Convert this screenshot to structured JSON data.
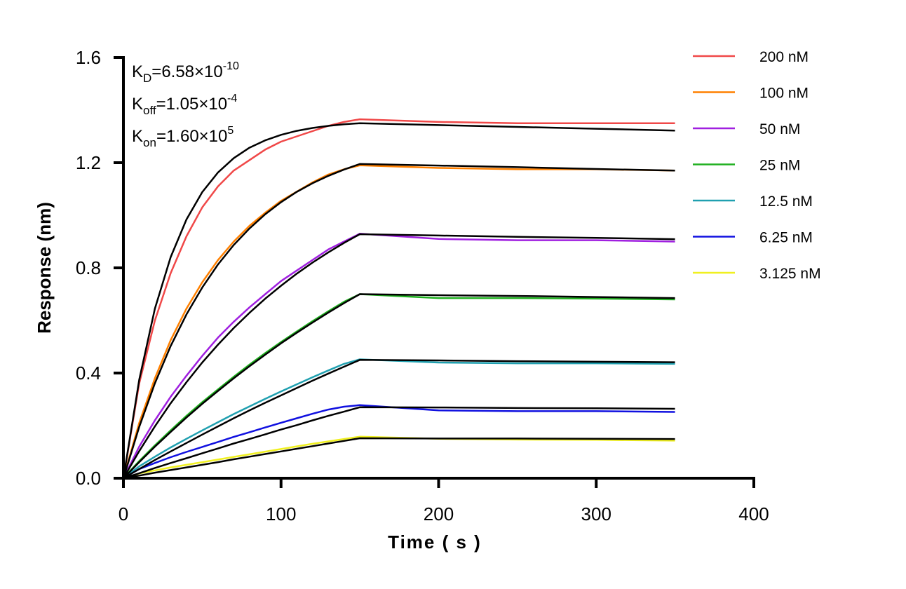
{
  "chart_data": {
    "type": "line",
    "title": "",
    "xlabel": "Time ( s )",
    "ylabel": "Response (nm)",
    "xlim": [
      0,
      400
    ],
    "ylim": [
      0,
      1.6
    ],
    "xticks": [
      "0",
      "100",
      "200",
      "300",
      "400"
    ],
    "yticks": [
      "0.0",
      "0.4",
      "0.8",
      "1.2",
      "1.6"
    ],
    "grid": false,
    "legend_position": "right",
    "fit_color": "#000000",
    "annotations": [
      {
        "symbol": "K",
        "sub": "D",
        "text": "=6.58×10",
        "sup": "-10"
      },
      {
        "symbol": "K",
        "sub": "off",
        "text": "=1.05×10",
        "sup": "-4"
      },
      {
        "symbol": "K",
        "sub": "on",
        "text": "=1.60×10",
        "sup": "5"
      }
    ],
    "x": [
      0,
      10,
      20,
      30,
      40,
      50,
      60,
      70,
      80,
      90,
      100,
      110,
      120,
      130,
      140,
      150,
      200,
      250,
      300,
      350
    ],
    "series": [
      {
        "name": "200 nM",
        "color": "#F04848",
        "values": [
          0,
          0.36,
          0.6,
          0.78,
          0.92,
          1.03,
          1.11,
          1.17,
          1.21,
          1.25,
          1.28,
          1.3,
          1.32,
          1.34,
          1.355,
          1.365,
          1.355,
          1.35,
          1.35,
          1.35
        ],
        "fit": [
          0,
          0.374,
          0.645,
          0.841,
          0.984,
          1.088,
          1.163,
          1.217,
          1.257,
          1.285,
          1.306,
          1.321,
          1.332,
          1.34,
          1.346,
          1.35,
          1.343,
          1.336,
          1.329,
          1.322
        ]
      },
      {
        "name": "100 nM",
        "color": "#FF8000",
        "values": [
          0,
          0.21,
          0.38,
          0.525,
          0.645,
          0.745,
          0.83,
          0.9,
          0.96,
          1.01,
          1.055,
          1.09,
          1.125,
          1.155,
          1.175,
          1.19,
          1.18,
          1.175,
          1.175,
          1.17
        ],
        "fit": [
          0,
          0.195,
          0.361,
          0.503,
          0.623,
          0.725,
          0.813,
          0.887,
          0.95,
          1.004,
          1.05,
          1.089,
          1.122,
          1.15,
          1.174,
          1.195,
          1.189,
          1.183,
          1.176,
          1.17
        ]
      },
      {
        "name": "50 nM",
        "color": "#A020E0",
        "values": [
          0,
          0.12,
          0.22,
          0.31,
          0.39,
          0.465,
          0.535,
          0.595,
          0.65,
          0.7,
          0.75,
          0.79,
          0.83,
          0.87,
          0.9,
          0.93,
          0.91,
          0.905,
          0.905,
          0.9
        ],
        "fit": [
          0,
          0.103,
          0.197,
          0.285,
          0.365,
          0.44,
          0.508,
          0.571,
          0.629,
          0.683,
          0.732,
          0.778,
          0.82,
          0.859,
          0.895,
          0.928,
          0.923,
          0.918,
          0.914,
          0.909
        ]
      },
      {
        "name": "25 nM",
        "color": "#20B020",
        "values": [
          0,
          0.065,
          0.125,
          0.182,
          0.237,
          0.289,
          0.338,
          0.386,
          0.432,
          0.476,
          0.518,
          0.558,
          0.597,
          0.635,
          0.671,
          0.7,
          0.685,
          0.685,
          0.683,
          0.68
        ],
        "fit": [
          0,
          0.061,
          0.12,
          0.176,
          0.231,
          0.283,
          0.332,
          0.38,
          0.426,
          0.47,
          0.513,
          0.553,
          0.592,
          0.63,
          0.666,
          0.7,
          0.696,
          0.693,
          0.689,
          0.685
        ]
      },
      {
        "name": "12.5 nM",
        "color": "#20A0B0",
        "values": [
          0,
          0.045,
          0.082,
          0.117,
          0.15,
          0.182,
          0.213,
          0.244,
          0.273,
          0.302,
          0.33,
          0.357,
          0.384,
          0.41,
          0.435,
          0.452,
          0.44,
          0.437,
          0.437,
          0.435
        ],
        "fit": [
          0,
          0.035,
          0.069,
          0.102,
          0.134,
          0.166,
          0.197,
          0.228,
          0.258,
          0.287,
          0.315,
          0.343,
          0.371,
          0.398,
          0.424,
          0.45,
          0.448,
          0.445,
          0.443,
          0.441
        ]
      },
      {
        "name": "6.25 nM",
        "color": "#1010E0",
        "values": [
          0,
          0.035,
          0.058,
          0.08,
          0.1,
          0.119,
          0.138,
          0.157,
          0.175,
          0.193,
          0.211,
          0.228,
          0.245,
          0.261,
          0.272,
          0.278,
          0.258,
          0.255,
          0.255,
          0.252
        ],
        "fit": [
          0,
          0.019,
          0.039,
          0.058,
          0.076,
          0.095,
          0.113,
          0.132,
          0.149,
          0.167,
          0.185,
          0.202,
          0.22,
          0.237,
          0.253,
          0.27,
          0.269,
          0.267,
          0.266,
          0.264
        ]
      },
      {
        "name": "3.125 nM",
        "color": "#F0F020",
        "values": [
          0,
          0.018,
          0.03,
          0.041,
          0.051,
          0.061,
          0.071,
          0.081,
          0.091,
          0.101,
          0.111,
          0.121,
          0.131,
          0.14,
          0.149,
          0.158,
          0.15,
          0.147,
          0.146,
          0.143
        ],
        "fit": [
          0,
          0.01,
          0.021,
          0.031,
          0.041,
          0.051,
          0.061,
          0.072,
          0.082,
          0.092,
          0.102,
          0.112,
          0.122,
          0.132,
          0.142,
          0.152,
          0.151,
          0.151,
          0.15,
          0.149
        ]
      }
    ]
  }
}
